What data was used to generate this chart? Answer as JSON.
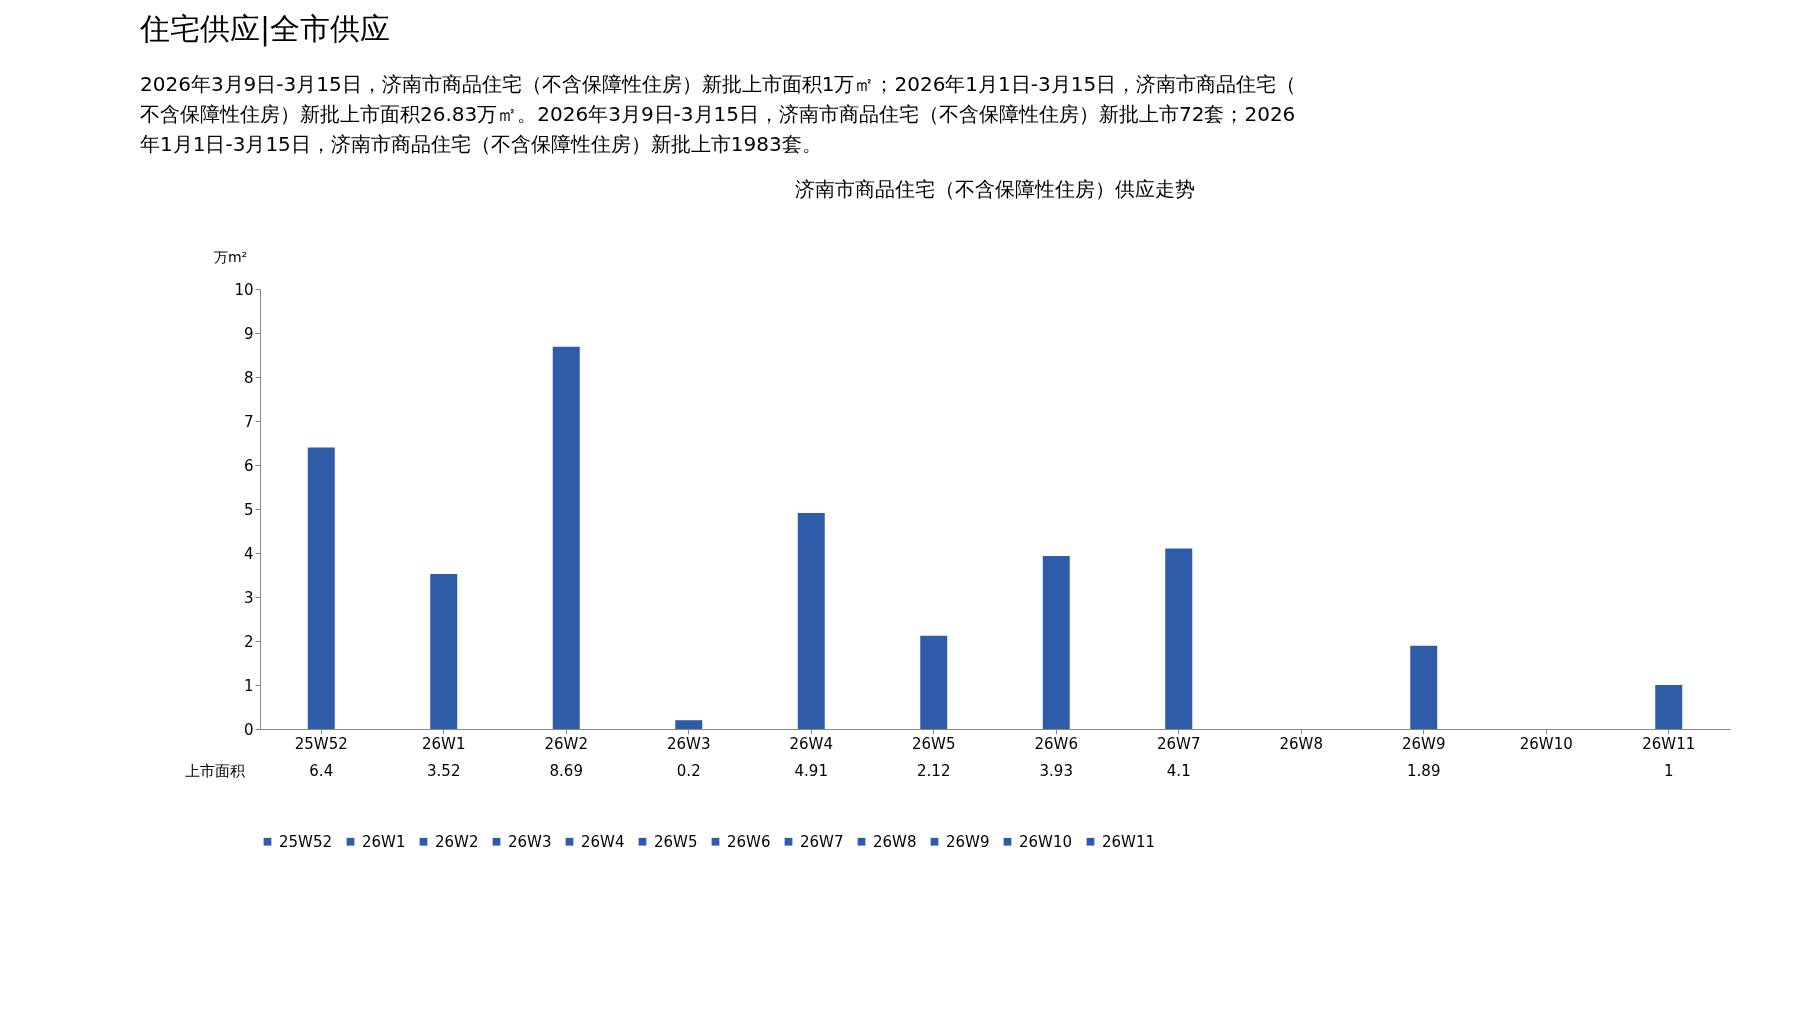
{
  "chart_data": {
    "type": "bar",
    "title": "济南市商品住宅（不含保障性住房）供应走势",
    "annotations": [
      "住宅供应|全市供应",
      "2026年3月9日-3月15日，济南市商品住宅（不含保障性住房）新批上市面积1万㎡；2026年1月1日-3月15日，济南市商品住宅（不含保障性住房）新批上市面积26.83万㎡。2026年3月9日-3月15日，济南市商品住宅（不含保障性住房）新批上市72套；2026年1月1日-3月15日，济南市商品住宅（不含保障性住房）新批上市1983套。",
      "上市面积"
    ],
    "ylabel": "万m²",
    "categories": [
      "25W52",
      "26W1",
      "26W2",
      "26W3",
      "26W4",
      "26W5",
      "26W6",
      "26W7",
      "26W8",
      "26W9",
      "26W10",
      "26W11"
    ],
    "series": [
      {
        "name": "25W52",
        "color": "#2f5ca8",
        "values": [
          6.4,
          null,
          null,
          null,
          null,
          null,
          null,
          null,
          null,
          null,
          null,
          null
        ]
      },
      {
        "name": "26W1",
        "color": "#2f5ca8",
        "values": [
          null,
          3.52,
          null,
          null,
          null,
          null,
          null,
          null,
          null,
          null,
          null,
          null
        ]
      },
      {
        "name": "26W2",
        "color": "#2f5ca8",
        "values": [
          null,
          null,
          8.69,
          null,
          null,
          null,
          null,
          null,
          null,
          null,
          null,
          null
        ]
      },
      {
        "name": "26W3",
        "color": "#2f5ca8",
        "values": [
          null,
          null,
          null,
          0.2,
          null,
          null,
          null,
          null,
          null,
          null,
          null,
          null
        ]
      },
      {
        "name": "26W4",
        "color": "#2f5ca8",
        "values": [
          null,
          null,
          null,
          null,
          4.91,
          null,
          null,
          null,
          null,
          null,
          null,
          null
        ]
      },
      {
        "name": "26W5",
        "color": "#2f5ca8",
        "values": [
          null,
          null,
          null,
          null,
          null,
          2.12,
          null,
          null,
          null,
          null,
          null,
          null
        ]
      },
      {
        "name": "26W6",
        "color": "#2f5ca8",
        "values": [
          null,
          null,
          null,
          null,
          null,
          null,
          3.93,
          null,
          null,
          null,
          null,
          null
        ]
      },
      {
        "name": "26W7",
        "color": "#2f5ca8",
        "values": [
          null,
          null,
          null,
          null,
          null,
          null,
          null,
          4.1,
          null,
          null,
          null,
          null
        ]
      },
      {
        "name": "26W8",
        "color": "#2f5ca8",
        "values": [
          null,
          null,
          null,
          null,
          null,
          null,
          null,
          null,
          null,
          null,
          null,
          null
        ]
      },
      {
        "name": "26W9",
        "color": "#2f5ca8",
        "values": [
          null,
          null,
          null,
          null,
          null,
          null,
          null,
          null,
          null,
          1.89,
          null,
          null
        ]
      },
      {
        "name": "26W10",
        "color": "#2f5ca8",
        "values": [
          null,
          null,
          null,
          null,
          null,
          null,
          null,
          null,
          null,
          null,
          null,
          null
        ]
      },
      {
        "name": "26W11",
        "color": "#2f5ca8",
        "values": [
          null,
          null,
          null,
          null,
          null,
          null,
          null,
          null,
          null,
          null,
          null,
          1
        ]
      }
    ],
    "ylim": [
      0,
      10
    ],
    "yticks": [
      0,
      1,
      2,
      3,
      4,
      5,
      6,
      7,
      8,
      9,
      10
    ],
    "grid": false,
    "legend": "bottom",
    "data_labels": true
  }
}
